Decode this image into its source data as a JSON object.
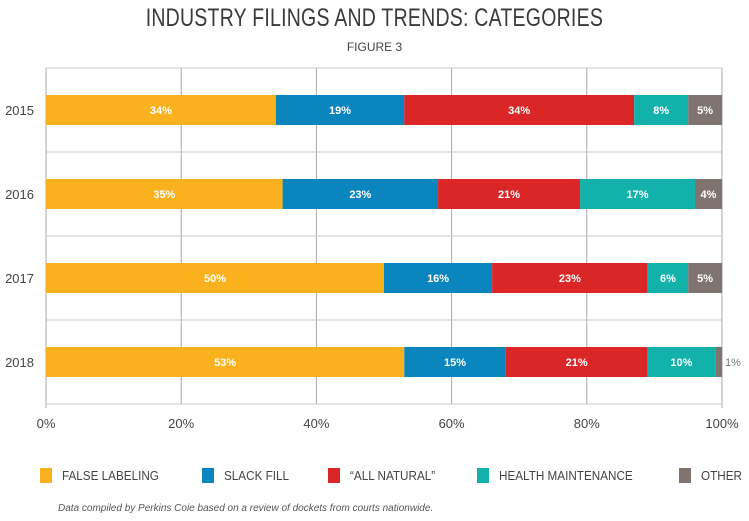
{
  "chart_data": {
    "type": "bar",
    "orientation": "horizontal",
    "stacked": true,
    "title": "INDUSTRY FILINGS AND TRENDS: CATEGORIES",
    "subtitle": "FIGURE 3",
    "xlabel": "",
    "ylabel": "",
    "xlim": [
      0,
      100
    ],
    "x_ticks": [
      "0%",
      "20%",
      "40%",
      "60%",
      "80%",
      "100%"
    ],
    "grid": true,
    "legend_position": "bottom",
    "categories": [
      "2015",
      "2016",
      "2017",
      "2018"
    ],
    "series": [
      {
        "name": "FALSE LABELING",
        "color": "#F9B21E",
        "values": [
          34,
          35,
          50,
          53
        ]
      },
      {
        "name": "SLACK FILL",
        "color": "#0A85BE",
        "values": [
          19,
          23,
          16,
          15
        ]
      },
      {
        "name": "“ALL NATURAL”",
        "color": "#DB2627",
        "values": [
          34,
          21,
          23,
          21
        ]
      },
      {
        "name": "HEALTH MAINTENANCE",
        "color": "#12B1A9",
        "values": [
          8,
          17,
          6,
          10
        ]
      },
      {
        "name": "OTHER",
        "color": "#7F7470",
        "values": [
          5,
          4,
          5,
          1
        ]
      }
    ],
    "value_suffix": "%",
    "note": "Data compiled by Perkins Coie based on a review of dockets from courts nationwide."
  }
}
